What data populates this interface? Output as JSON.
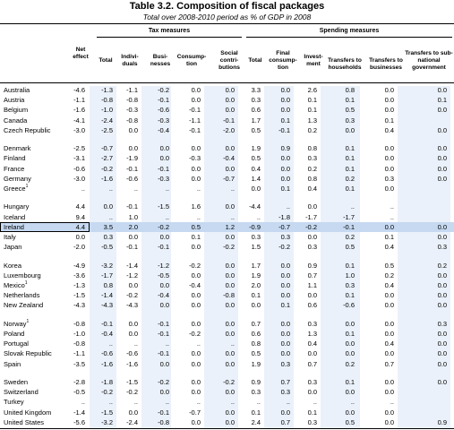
{
  "title": "Table 3.2.  Composition of fiscal packages",
  "subtitle": "Total over 2008-2010 period as % of GDP in 2008",
  "groups": {
    "tax": "Tax measures",
    "spending": "Spending measures"
  },
  "columns": [
    "Net effect",
    "Total",
    "Indivi-duals",
    "Busi-nesses",
    "Consump-tion",
    "Social contri-butions",
    "Total",
    "Final consump-tion",
    "Invest-ment",
    "Transfers to households",
    "Transfers to businesses",
    "Transfers to sub-national government"
  ],
  "rows": [
    {
      "country": "Australia",
      "note": "",
      "v": [
        "-4.6",
        "-1.3",
        "-1.1",
        "-0.2",
        "0.0",
        "0.0",
        "3.3",
        "0.0",
        "2.6",
        "0.8",
        "0.0",
        "0.0"
      ]
    },
    {
      "country": "Austria",
      "note": "",
      "v": [
        "-1.1",
        "-0.8",
        "-0.8",
        "-0.1",
        "0.0",
        "0.0",
        "0.3",
        "0.0",
        "0.1",
        "0.1",
        "0.0",
        "0.1"
      ]
    },
    {
      "country": "Belgium",
      "note": "",
      "v": [
        "-1.6",
        "-1.0",
        "-0.3",
        "-0.6",
        "-0.1",
        "0.0",
        "0.6",
        "0.0",
        "0.1",
        "0.5",
        "0.0",
        "0.0"
      ]
    },
    {
      "country": "Canada",
      "note": "",
      "v": [
        "-4.1",
        "-2.4",
        "-0.8",
        "-0.3",
        "-1.1",
        "-0.1",
        "1.7",
        "0.1",
        "1.3",
        "0.3",
        "0.1",
        ""
      ]
    },
    {
      "country": "Czech Republic",
      "note": "",
      "v": [
        "-3.0",
        "-2.5",
        "0.0",
        "-0.4",
        "-0.1",
        "-2.0",
        "0.5",
        "-0.1",
        "0.2",
        "0.0",
        "0.4",
        "0.0"
      ]
    },
    {
      "spacer": true
    },
    {
      "country": "Denmark",
      "note": "",
      "v": [
        "-2.5",
        "-0.7",
        "0.0",
        "0.0",
        "0.0",
        "0.0",
        "1.9",
        "0.9",
        "0.8",
        "0.1",
        "0.0",
        "0.0"
      ]
    },
    {
      "country": "Finland",
      "note": "",
      "v": [
        "-3.1",
        "-2.7",
        "-1.9",
        "0.0",
        "-0.3",
        "-0.4",
        "0.5",
        "0.0",
        "0.3",
        "0.1",
        "0.0",
        "0.0"
      ]
    },
    {
      "country": "France",
      "note": "",
      "v": [
        "-0.6",
        "-0.2",
        "-0.1",
        "-0.1",
        "0.0",
        "0.0",
        "0.4",
        "0.0",
        "0.2",
        "0.1",
        "0.0",
        "0.0"
      ]
    },
    {
      "country": "Germany",
      "note": "",
      "v": [
        "-3.0",
        "-1.6",
        "-0.6",
        "-0.3",
        "0.0",
        "-0.7",
        "1.4",
        "0.0",
        "0.8",
        "0.2",
        "0.3",
        "0.0"
      ]
    },
    {
      "country": "Greece",
      "note": "1",
      "v": [
        "..",
        "..",
        "..",
        "..",
        "..",
        "..",
        "0.0",
        "0.1",
        "0.4",
        "0.1",
        "0.0",
        ""
      ]
    },
    {
      "spacer": true
    },
    {
      "country": "Hungary",
      "note": "",
      "v": [
        "4.4",
        "0.0",
        "-0.1",
        "-1.5",
        "1.6",
        "0.0",
        "-4.4",
        "..",
        "0.0",
        "..",
        "..",
        ""
      ]
    },
    {
      "country": "Iceland",
      "note": "",
      "v": [
        "9.4",
        "..",
        "1.0",
        "..",
        "..",
        "..",
        "..",
        "-1.8",
        "-1.7",
        "-1.7",
        "..",
        ""
      ]
    },
    {
      "country": "Ireland",
      "note": "",
      "hl": true,
      "v": [
        "4.4",
        "3.5",
        "2.0",
        "-0.2",
        "0.5",
        "1.2",
        "-0.9",
        "-0.7",
        "-0.2",
        "-0.1",
        "0.0",
        "0.0"
      ]
    },
    {
      "country": "Italy",
      "note": "",
      "v": [
        "0.0",
        "0.3",
        "0.0",
        "0.0",
        "0.1",
        "0.0",
        "0.3",
        "0.3",
        "0.0",
        "0.2",
        "0.1",
        "0.0"
      ]
    },
    {
      "country": "Japan",
      "note": "",
      "v": [
        "-2.0",
        "-0.5",
        "-0.1",
        "-0.1",
        "0.0",
        "-0.2",
        "1.5",
        "-0.2",
        "0.3",
        "0.5",
        "0.4",
        "0.3"
      ]
    },
    {
      "spacer": true
    },
    {
      "country": "Korea",
      "note": "",
      "v": [
        "-4.9",
        "-3.2",
        "-1.4",
        "-1.2",
        "-0.2",
        "0.0",
        "1.7",
        "0.0",
        "0.9",
        "0.1",
        "0.5",
        "0.2"
      ]
    },
    {
      "country": "Luxembourg",
      "note": "",
      "v": [
        "-3.6",
        "-1.7",
        "-1.2",
        "-0.5",
        "0.0",
        "0.0",
        "1.9",
        "0.0",
        "0.7",
        "1.0",
        "0.2",
        "0.0"
      ]
    },
    {
      "country": "Mexico",
      "note": "1",
      "v": [
        "-1.3",
        "0.8",
        "0.0",
        "0.0",
        "-0.4",
        "0.0",
        "2.0",
        "0.0",
        "1.1",
        "0.3",
        "0.4",
        "0.0"
      ]
    },
    {
      "country": "Netherlands",
      "note": "",
      "v": [
        "-1.5",
        "-1.4",
        "-0.2",
        "-0.4",
        "0.0",
        "-0.8",
        "0.1",
        "0.0",
        "0.0",
        "0.1",
        "0.0",
        "0.0"
      ]
    },
    {
      "country": "New Zealand",
      "note": "",
      "v": [
        "-4.3",
        "-4.3",
        "-4.3",
        "0.0",
        "0.0",
        "0.0",
        "0.0",
        "0.1",
        "0.6",
        "-0.6",
        "0.0",
        "0.0"
      ]
    },
    {
      "spacer": true
    },
    {
      "country": "Norway",
      "note": "1",
      "v": [
        "-0.8",
        "-0.1",
        "0.0",
        "-0.1",
        "0.0",
        "0.0",
        "0.7",
        "0.0",
        "0.3",
        "0.0",
        "0.0",
        "0.3"
      ]
    },
    {
      "country": "Poland",
      "note": "",
      "v": [
        "-1.0",
        "-0.4",
        "0.0",
        "-0.1",
        "-0.2",
        "0.0",
        "0.6",
        "0.0",
        "1.3",
        "0.1",
        "0.0",
        "0.0"
      ]
    },
    {
      "country": "Portugal",
      "note": "",
      "v": [
        "-0.8",
        "..",
        "..",
        "..",
        "..",
        "..",
        "0.8",
        "0.0",
        "0.4",
        "0.0",
        "0.4",
        "0.0"
      ]
    },
    {
      "country": "Slovak Republic",
      "note": "",
      "v": [
        "-1.1",
        "-0.6",
        "-0.6",
        "-0.1",
        "0.0",
        "0.0",
        "0.5",
        "0.0",
        "0.0",
        "0.0",
        "0.0",
        "0.0"
      ]
    },
    {
      "country": "Spain",
      "note": "",
      "v": [
        "-3.5",
        "-1.6",
        "-1.6",
        "0.0",
        "0.0",
        "0.0",
        "1.9",
        "0.3",
        "0.7",
        "0.2",
        "0.7",
        "0.0"
      ]
    },
    {
      "spacer": true
    },
    {
      "country": "Sweden",
      "note": "",
      "v": [
        "-2.8",
        "-1.8",
        "-1.5",
        "-0.2",
        "0.0",
        "-0.2",
        "0.9",
        "0.7",
        "0.3",
        "0.1",
        "0.0",
        "0.0"
      ]
    },
    {
      "country": "Switzerland",
      "note": "",
      "v": [
        "-0.5",
        "-0.2",
        "-0.2",
        "0.0",
        "0.0",
        "0.0",
        "0.3",
        "0.3",
        "0.0",
        "0.0",
        "0.0",
        ""
      ]
    },
    {
      "country": "Turkey",
      "note": "",
      "v": [
        "..",
        "..",
        "..",
        "..",
        "..",
        "..",
        "..",
        "..",
        "..",
        "..",
        "..",
        ""
      ]
    },
    {
      "country": "United Kingdom",
      "note": "",
      "v": [
        "-1.4",
        "-1.5",
        "0.0",
        "-0.1",
        "-0.7",
        "0.0",
        "0.1",
        "0.0",
        "0.1",
        "0.0",
        "0.0",
        ""
      ]
    },
    {
      "country": "United States",
      "note": "",
      "v": [
        "-5.6",
        "-3.2",
        "-2.4",
        "-0.8",
        "0.0",
        "0.0",
        "2.4",
        "0.7",
        "0.3",
        "0.5",
        "0.0",
        "0.9"
      ]
    }
  ]
}
